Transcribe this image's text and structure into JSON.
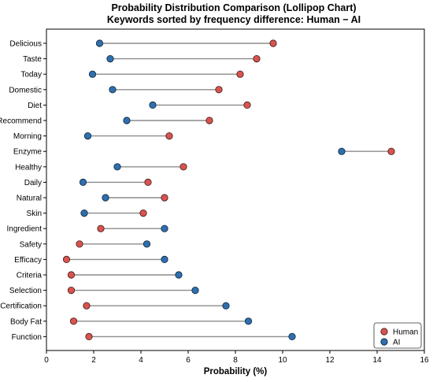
{
  "chart_data": {
    "type": "lollipop",
    "title": "Probability Distribution Comparison (Lollipop Chart)",
    "subtitle": "Keywords sorted by frequency difference: Human − AI",
    "xlabel": "Probability (%)",
    "ylabel": "",
    "xlim": [
      0,
      16
    ],
    "xticks": [
      0,
      2,
      4,
      6,
      8,
      10,
      12,
      14,
      16
    ],
    "grid": false,
    "legend_position": "bottom-right",
    "categories": [
      "Delicious",
      "Taste",
      "Today",
      "Domestic",
      "Diet",
      "Recommend",
      "Morning",
      "Enzyme",
      "Healthy",
      "Daily",
      "Natural",
      "Skin",
      "Ingredient",
      "Safety",
      "Efficacy",
      "Criteria",
      "Selection",
      "Certification",
      "Body Fat",
      "Function"
    ],
    "series": [
      {
        "name": "Human",
        "color": "#d9534f",
        "values": [
          9.6,
          8.9,
          8.2,
          7.3,
          8.5,
          6.9,
          5.2,
          14.6,
          5.8,
          4.3,
          5.0,
          4.1,
          2.3,
          1.4,
          0.85,
          1.05,
          1.05,
          1.7,
          1.15,
          1.8
        ]
      },
      {
        "name": "AI",
        "color": "#2e6fb0",
        "values": [
          2.25,
          2.7,
          1.95,
          2.8,
          4.5,
          3.4,
          1.75,
          12.5,
          3.0,
          1.55,
          2.5,
          1.6,
          5.0,
          4.25,
          5.0,
          5.6,
          6.3,
          7.6,
          8.55,
          10.4
        ]
      }
    ]
  }
}
